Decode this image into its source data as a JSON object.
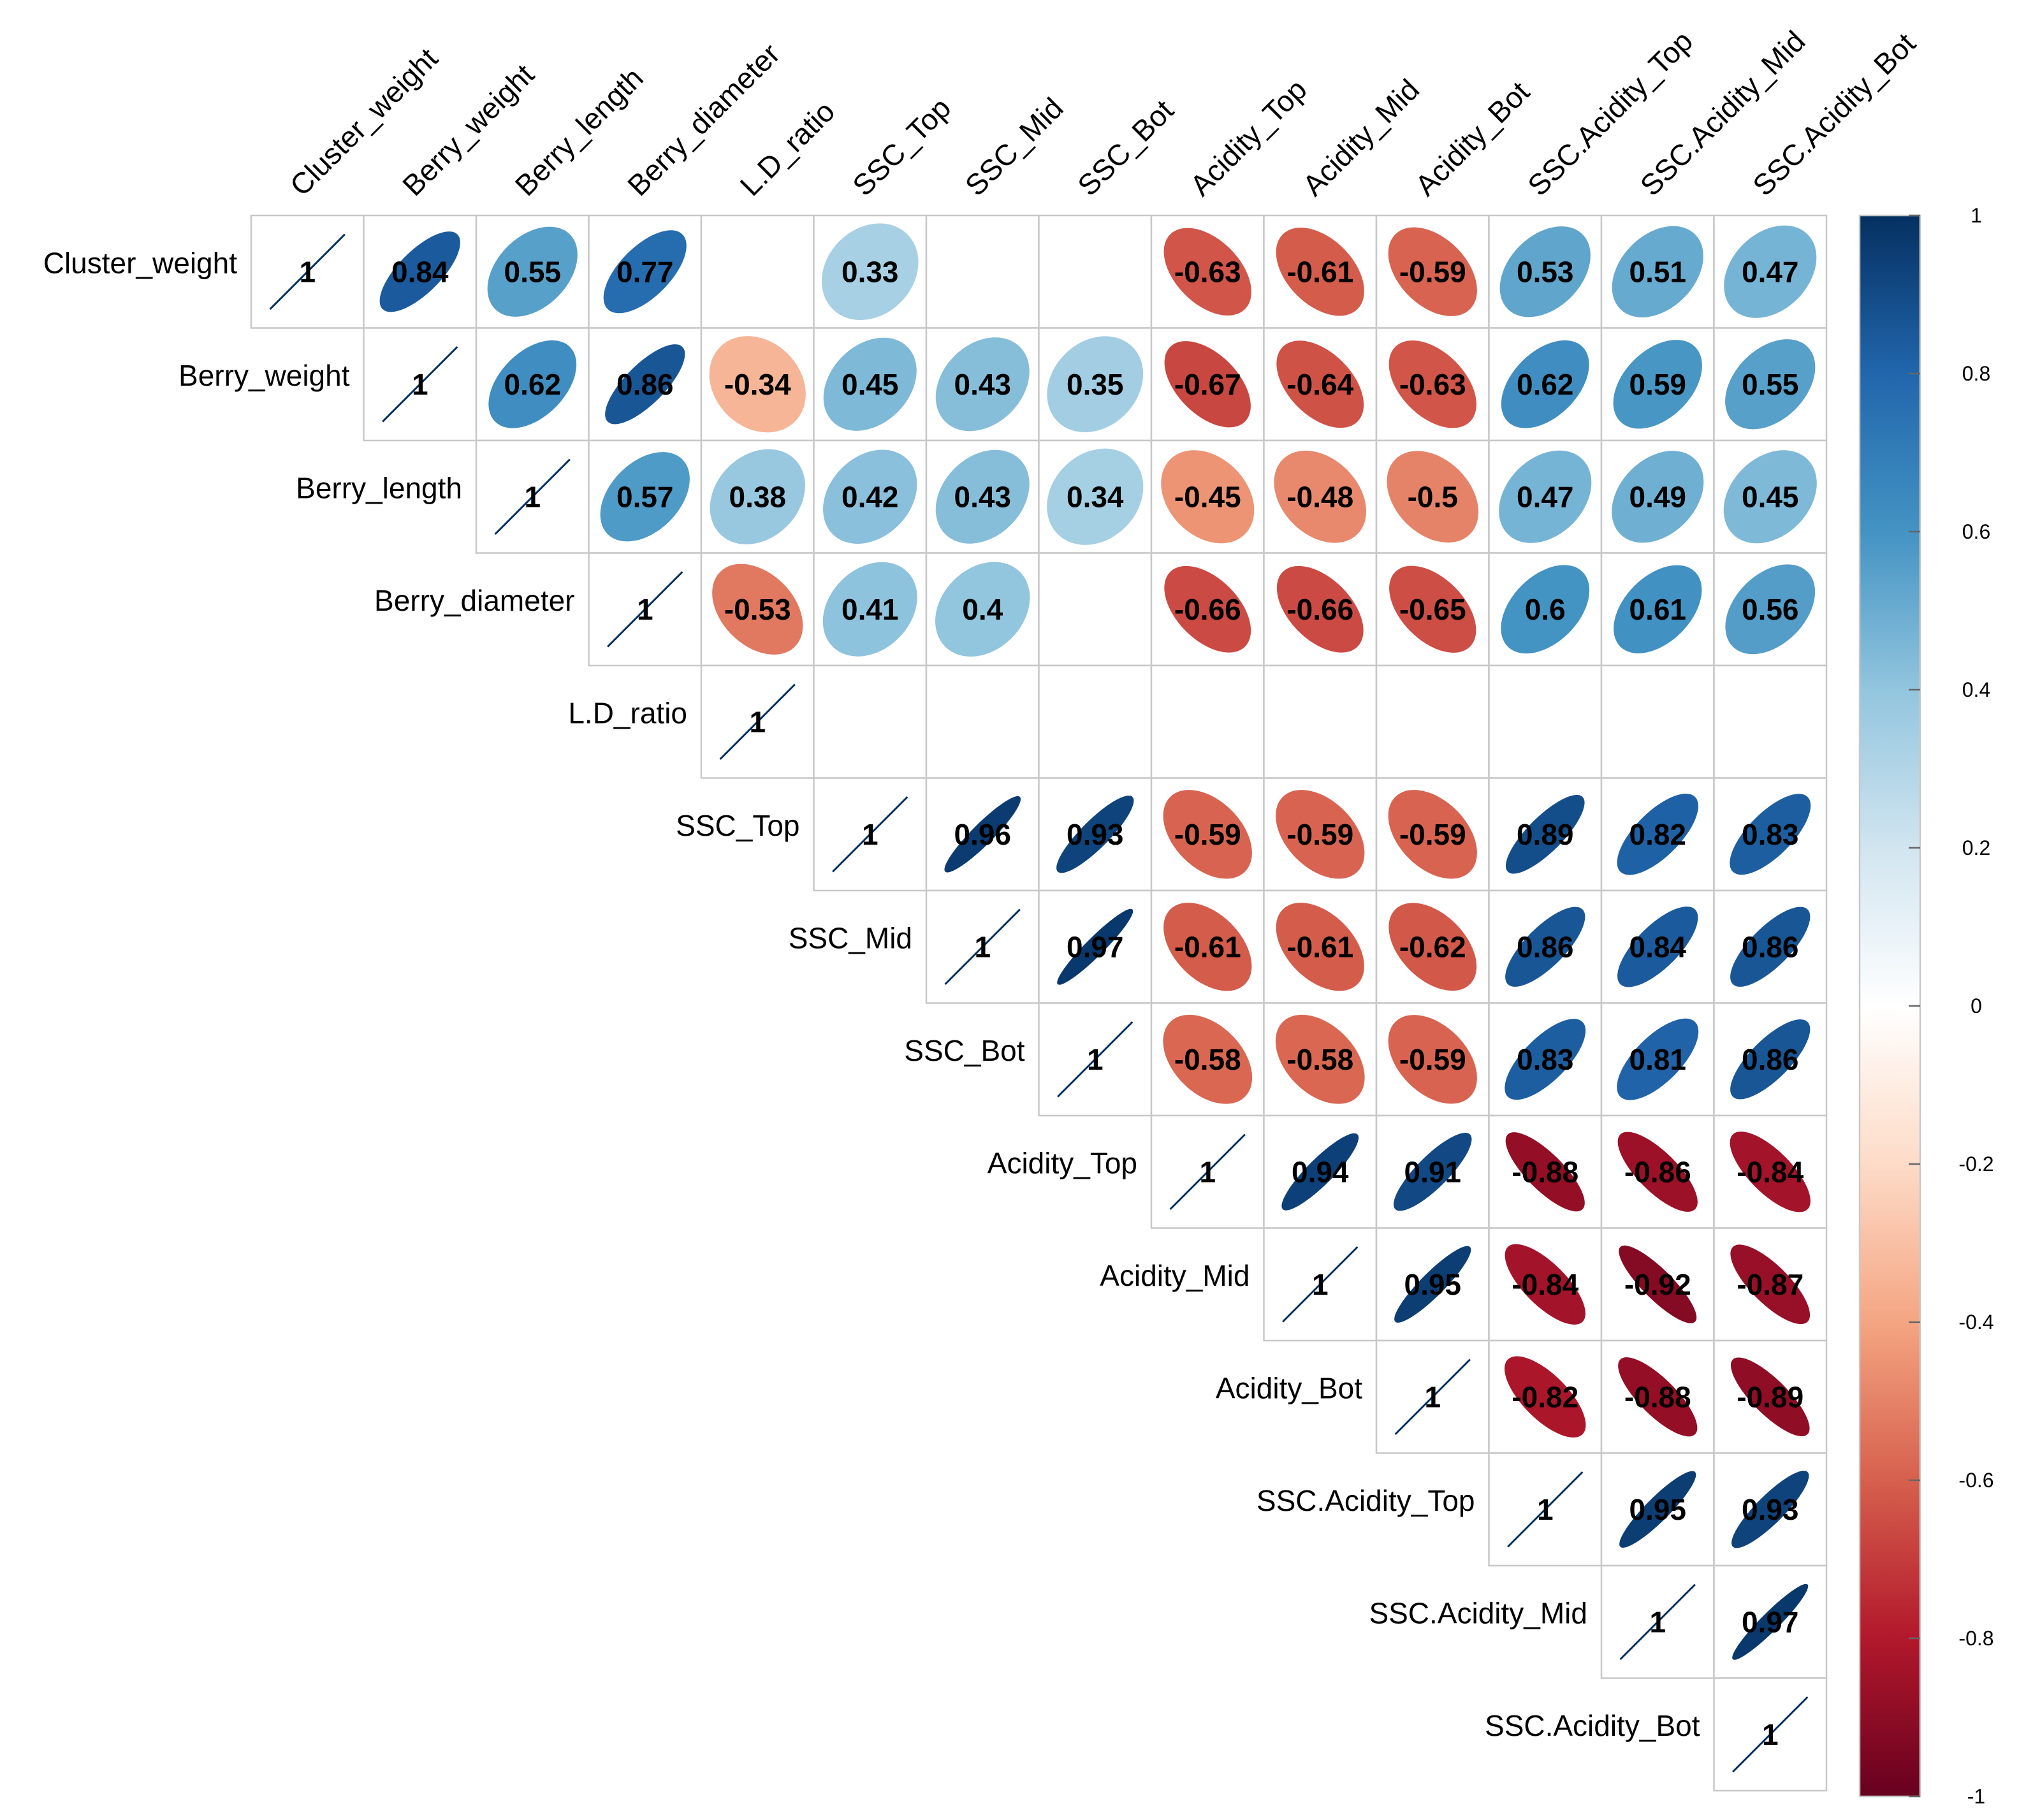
{
  "chart_data": {
    "type": "heatmap",
    "subtype": "correlation-matrix-upper-ellipse",
    "variables": [
      "Cluster_weight",
      "Berry_weight",
      "Berry_length",
      "Berry_diameter",
      "L.D_ratio",
      "SSC_Top",
      "SSC_Mid",
      "SSC_Bot",
      "Acidity_Top",
      "Acidity_Mid",
      "Acidity_Bot",
      "SSC.Acidity_Top",
      "SSC.Acidity_Mid",
      "SSC.Acidity_Bot"
    ],
    "matrix": [
      [
        1,
        0.84,
        0.55,
        0.77,
        null,
        0.33,
        null,
        null,
        -0.63,
        -0.61,
        -0.59,
        0.53,
        0.51,
        0.47
      ],
      [
        null,
        1,
        0.62,
        0.86,
        -0.34,
        0.45,
        0.43,
        0.35,
        -0.67,
        -0.64,
        -0.63,
        0.62,
        0.59,
        0.55
      ],
      [
        null,
        null,
        1,
        0.57,
        0.38,
        0.42,
        0.43,
        0.34,
        -0.45,
        -0.48,
        -0.5,
        0.47,
        0.49,
        0.45
      ],
      [
        null,
        null,
        null,
        1,
        -0.53,
        0.41,
        0.4,
        null,
        -0.66,
        -0.66,
        -0.65,
        0.6,
        0.61,
        0.56
      ],
      [
        null,
        null,
        null,
        null,
        1,
        null,
        null,
        null,
        null,
        null,
        null,
        null,
        null,
        null
      ],
      [
        null,
        null,
        null,
        null,
        null,
        1,
        0.96,
        0.93,
        -0.59,
        -0.59,
        -0.59,
        0.89,
        0.82,
        0.83
      ],
      [
        null,
        null,
        null,
        null,
        null,
        null,
        1,
        0.97,
        -0.61,
        -0.61,
        -0.62,
        0.86,
        0.84,
        0.86
      ],
      [
        null,
        null,
        null,
        null,
        null,
        null,
        null,
        1,
        -0.58,
        -0.58,
        -0.59,
        0.83,
        0.81,
        0.86
      ],
      [
        null,
        null,
        null,
        null,
        null,
        null,
        null,
        null,
        1,
        0.94,
        0.91,
        -0.88,
        -0.86,
        -0.84
      ],
      [
        null,
        null,
        null,
        null,
        null,
        null,
        null,
        null,
        null,
        1,
        0.95,
        -0.84,
        -0.92,
        -0.87
      ],
      [
        null,
        null,
        null,
        null,
        null,
        null,
        null,
        null,
        null,
        null,
        1,
        -0.82,
        -0.88,
        -0.89
      ],
      [
        null,
        null,
        null,
        null,
        null,
        null,
        null,
        null,
        null,
        null,
        null,
        1,
        0.95,
        0.93
      ],
      [
        null,
        null,
        null,
        null,
        null,
        null,
        null,
        null,
        null,
        null,
        null,
        null,
        1,
        0.97
      ],
      [
        null,
        null,
        null,
        null,
        null,
        null,
        null,
        null,
        null,
        null,
        null,
        null,
        null,
        1
      ]
    ],
    "value_range": [
      -1,
      1
    ],
    "colorbar": {
      "ticks": [
        1,
        0.8,
        0.6,
        0.4,
        0.2,
        0,
        -0.2,
        -0.4,
        -0.6,
        -0.8,
        -1
      ],
      "tick_labels": [
        "1",
        "0.8",
        "0.6",
        "0.4",
        "0.2",
        "0",
        "-0.2",
        "-0.4",
        "-0.6",
        "-0.8",
        "-1"
      ],
      "colors": [
        "#67001f",
        "#b2182b",
        "#d6604d",
        "#f4a582",
        "#fddbc7",
        "#ffffff",
        "#d1e5f0",
        "#92c5de",
        "#4393c3",
        "#2166ac",
        "#053061"
      ]
    },
    "legend": "right",
    "title": "",
    "xlabel": "",
    "ylabel": ""
  }
}
